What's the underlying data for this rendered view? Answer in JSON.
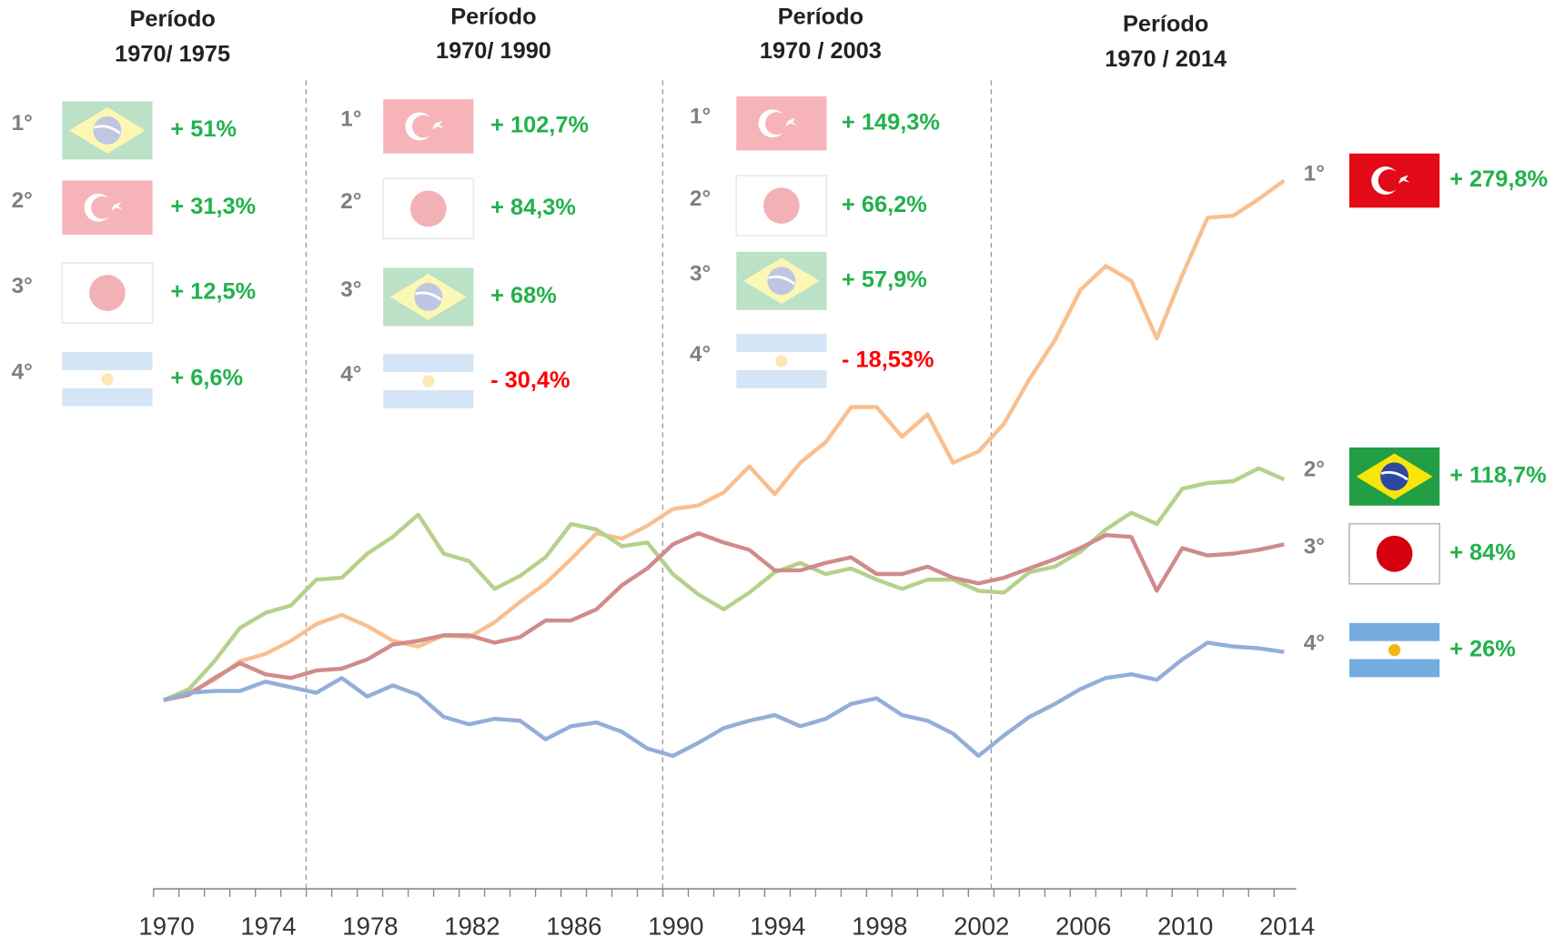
{
  "chart_data": {
    "type": "line",
    "x": [
      1970,
      1971,
      1972,
      1973,
      1974,
      1975,
      1976,
      1977,
      1978,
      1979,
      1980,
      1981,
      1982,
      1983,
      1984,
      1985,
      1986,
      1987,
      1988,
      1989,
      1990,
      1991,
      1992,
      1993,
      1994,
      1995,
      1996,
      1997,
      1998,
      1999,
      2000,
      2001,
      2002,
      2003,
      2004,
      2005,
      2006,
      2007,
      2008,
      2009,
      2010,
      2011,
      2012,
      2013,
      2014
    ],
    "xlim": [
      1970,
      2014
    ],
    "xticks": [
      1970,
      1974,
      1978,
      1982,
      1986,
      1990,
      1994,
      1998,
      2002,
      2006,
      2010,
      2014
    ],
    "period_dividers": [
      1975.6,
      1989.6,
      2002.5
    ],
    "series": [
      {
        "color": "#f9bf8f",
        "values": [
          0,
          4,
          11,
          21,
          25,
          32,
          41,
          46,
          40,
          32,
          29,
          35,
          34,
          42,
          53,
          63,
          76,
          90,
          87,
          94,
          103,
          105,
          112,
          126,
          111,
          128,
          139,
          158,
          158,
          142,
          154,
          128,
          134,
          149,
          173,
          194,
          221,
          234,
          226,
          195,
          229,
          260,
          261,
          270,
          280
        ]
      },
      {
        "color": "#b5d18b",
        "values": [
          0,
          6,
          21,
          39,
          47,
          51,
          65,
          66,
          79,
          88,
          100,
          79,
          75,
          60,
          67,
          77,
          95,
          92,
          83,
          85,
          68,
          57,
          49,
          58,
          69,
          74,
          68,
          71,
          65,
          60,
          65,
          65,
          59,
          58,
          69,
          72,
          80,
          92,
          101,
          95,
          114,
          117,
          118,
          125,
          119
        ]
      },
      {
        "color": "#d08b8b",
        "values": [
          0,
          3,
          12,
          20,
          14,
          12,
          16,
          17,
          22,
          30,
          32,
          35,
          35,
          31,
          34,
          43,
          43,
          49,
          62,
          71,
          84,
          90,
          85,
          81,
          70,
          70,
          74,
          77,
          68,
          68,
          72,
          66,
          63,
          66,
          71,
          76,
          82,
          89,
          88,
          59,
          82,
          78,
          79,
          81,
          84
        ]
      },
      {
        "color": "#94aed8",
        "values": [
          0,
          4,
          5,
          5,
          10,
          7,
          4,
          12,
          2,
          8,
          3,
          -9,
          -13,
          -10,
          -11,
          -21,
          -14,
          -12,
          -17,
          -26,
          -30,
          -23,
          -15,
          -11,
          -8,
          -14,
          -10,
          -2,
          1,
          -8,
          -11,
          -18,
          -30,
          -19,
          -9,
          -2,
          6,
          12,
          14,
          11,
          22,
          31,
          29,
          28,
          26
        ]
      }
    ]
  },
  "panels": [
    {
      "title": "Período",
      "subtitle": "1970/ 1975",
      "ranks": [
        "1°",
        "2°",
        "3°",
        "4°"
      ],
      "values": [
        51,
        31.3,
        12.5,
        6.6
      ],
      "value_labels": [
        "+ 51%",
        "+ 31,3%",
        "+ 12,5%",
        "+ 6,6%"
      ]
    },
    {
      "title": "Período",
      "subtitle": "1970/ 1990",
      "ranks": [
        "1°",
        "2°",
        "3°",
        "4°"
      ],
      "values": [
        102.7,
        84.3,
        68,
        -30.4
      ],
      "value_labels": [
        "+ 102,7%",
        "+ 84,3%",
        "+ 68%",
        "- 30,4%"
      ]
    },
    {
      "title": "Período",
      "subtitle": "1970 / 2003",
      "ranks": [
        "1°",
        "2°",
        "3°",
        "4°"
      ],
      "values": [
        149.3,
        66.2,
        57.9,
        -18.53
      ],
      "value_labels": [
        "+ 149,3%",
        "+ 66,2%",
        "+ 57,9%",
        "- 18,53%"
      ]
    },
    {
      "title": "Período",
      "subtitle": "1970 / 2014",
      "ranks": [
        "1°",
        "2°",
        "3°",
        "4°"
      ],
      "values": [
        279.8,
        118.7,
        84,
        26
      ],
      "value_labels": [
        "+ 279,8%",
        "+ 118,7%",
        "+ 84%",
        "+ 26%"
      ]
    }
  ]
}
